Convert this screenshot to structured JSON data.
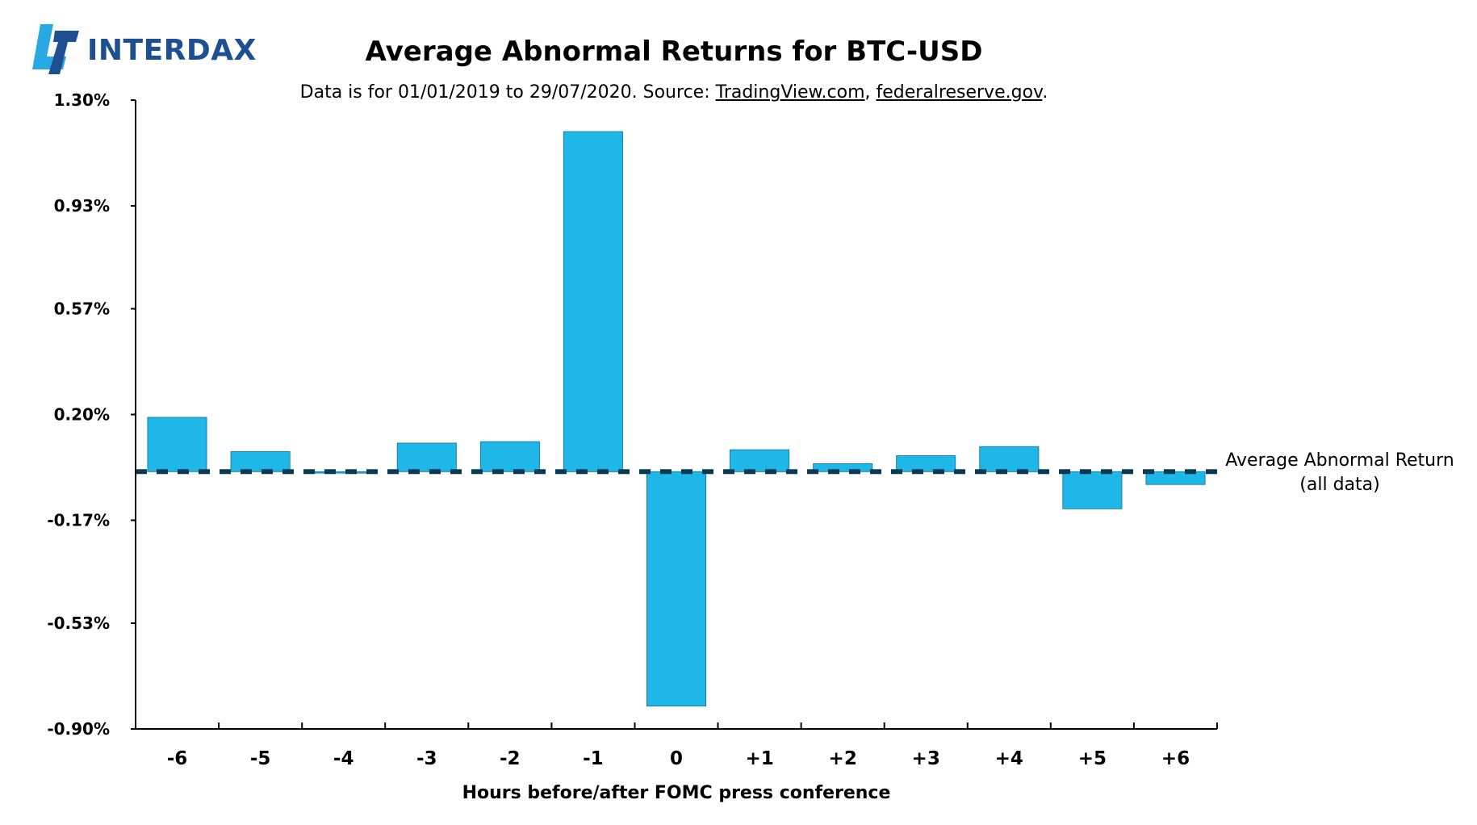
{
  "brand": {
    "name": "INTERDAX",
    "accent_color": "#1d4f91",
    "secondary_color": "#29a9e1",
    "icon": "interdax-logo-icon"
  },
  "chart_data": {
    "type": "bar",
    "title": "Average Abnormal Returns for BTC-USD",
    "subtitle": {
      "prefix": "Data is for 01/01/2019 to 29/07/2020. Source: ",
      "link1": "TradingView.com",
      "separator": ", ",
      "link2": "federalreserve.gov",
      "suffix": "."
    },
    "xlabel": "Hours before/after FOMC press conference",
    "ylabel": "",
    "categories": [
      "-6",
      "-5",
      "-4",
      "-3",
      "-2",
      "-1",
      "0",
      "+1",
      "+2",
      "+3",
      "+4",
      "+5",
      "+6"
    ],
    "values": [
      0.19,
      0.07,
      -0.005,
      0.1,
      0.105,
      1.19,
      -0.82,
      0.077,
      0.028,
      0.056,
      0.088,
      -0.13,
      -0.045
    ],
    "ylim": [
      -0.9,
      1.3
    ],
    "yticks": [
      "1.30%",
      "0.93%",
      "0.57%",
      "0.20%",
      "-0.17%",
      "-0.53%",
      "-0.90%"
    ],
    "ytick_values": [
      1.3,
      0.93,
      0.57,
      0.2,
      -0.17,
      -0.53,
      -0.9
    ],
    "bar_color": "#1fb6e8",
    "bar_edge_color": "#0d6f99",
    "reference_line": {
      "value": 0.0,
      "label_line1": "Average Abnormal Return",
      "label_line2": "(all data)",
      "color": "#0b3a53",
      "style": "dashed"
    },
    "grid": false,
    "legend": "none"
  }
}
